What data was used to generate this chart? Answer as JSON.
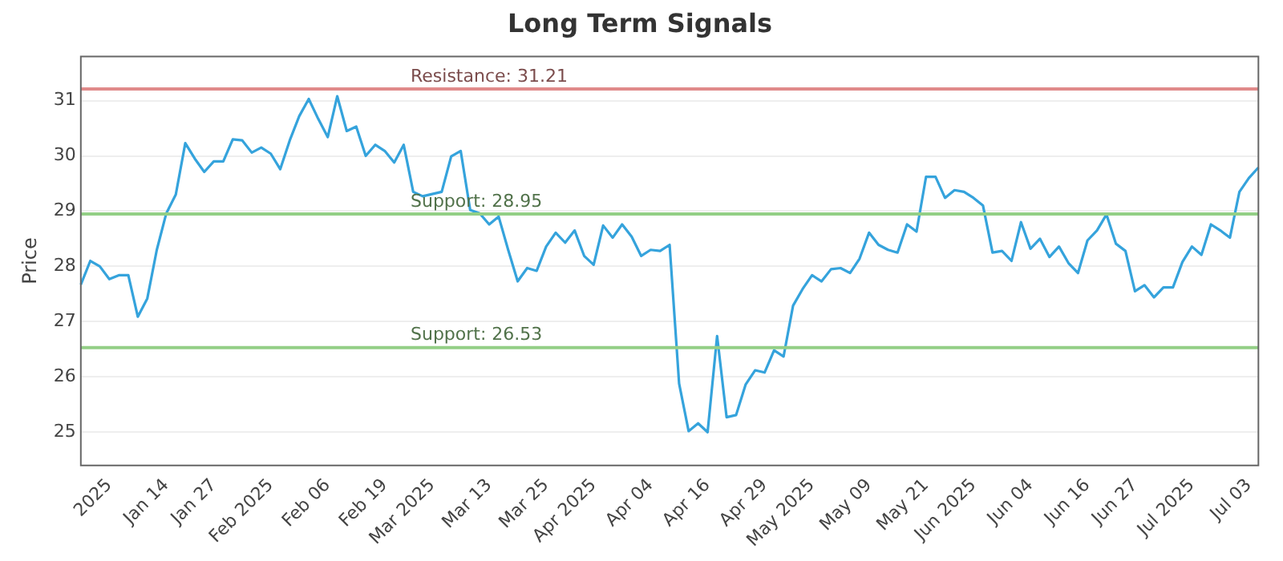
{
  "chart_data": {
    "type": "line",
    "title": "Long Term Signals",
    "ylabel": "Price",
    "categories": [
      null,
      null,
      null,
      "2025",
      null,
      null,
      null,
      null,
      null,
      "Jan 14",
      null,
      null,
      null,
      null,
      "Jan 27",
      null,
      null,
      null,
      null,
      null,
      "Feb 2025",
      null,
      null,
      null,
      null,
      null,
      "Feb 06",
      null,
      null,
      null,
      null,
      null,
      "Feb 19",
      null,
      null,
      null,
      null,
      "Mar 2025",
      null,
      null,
      null,
      null,
      null,
      "Mar 13",
      null,
      null,
      null,
      null,
      null,
      "Mar 25",
      null,
      null,
      null,
      null,
      "Apr 2025",
      null,
      null,
      null,
      null,
      null,
      "Apr 04",
      null,
      null,
      null,
      null,
      null,
      "Apr 16",
      null,
      null,
      null,
      null,
      null,
      "Apr 29",
      null,
      null,
      null,
      null,
      "May 2025",
      null,
      null,
      null,
      null,
      null,
      "May 09",
      null,
      null,
      null,
      null,
      null,
      "May 21",
      null,
      null,
      null,
      null,
      "Jun 2025",
      null,
      null,
      null,
      null,
      null,
      "Jun 04",
      null,
      null,
      null,
      null,
      null,
      "Jun 16",
      null,
      null,
      null,
      null,
      "Jun 27",
      null,
      null,
      null,
      null,
      null,
      "Jul 2025",
      null,
      null,
      null,
      null,
      null,
      "Jul 03",
      null
    ],
    "series": [
      {
        "color": "#35a3dc",
        "values": [
          27.67,
          28.1,
          28.0,
          27.77,
          27.84,
          27.84,
          27.09,
          27.42,
          28.3,
          28.96,
          29.3,
          30.23,
          29.95,
          29.71,
          29.9,
          29.9,
          30.3,
          30.28,
          30.06,
          30.15,
          30.04,
          29.76,
          30.28,
          30.72,
          31.03,
          30.67,
          30.34,
          31.08,
          30.45,
          30.53,
          30.0,
          30.2,
          30.09,
          29.88,
          30.2,
          29.35,
          29.27,
          29.31,
          29.35,
          29.99,
          30.09,
          29.02,
          28.96,
          28.76,
          28.9,
          28.3,
          27.73,
          27.97,
          27.92,
          28.36,
          28.61,
          28.43,
          28.65,
          28.19,
          28.03,
          28.74,
          28.52,
          28.76,
          28.54,
          28.19,
          28.3,
          28.28,
          28.39,
          25.88,
          25.02,
          25.16,
          25.0,
          26.74,
          25.27,
          25.31,
          25.86,
          26.12,
          26.08,
          26.48,
          26.37,
          27.29,
          27.59,
          27.84,
          27.73,
          27.95,
          27.97,
          27.88,
          28.14,
          28.61,
          28.39,
          28.3,
          28.25,
          28.76,
          28.63,
          29.62,
          29.62,
          29.24,
          29.38,
          29.35,
          29.24,
          29.1,
          28.25,
          28.28,
          28.1,
          28.8,
          28.32,
          28.5,
          28.17,
          28.36,
          28.06,
          27.88,
          28.47,
          28.65,
          28.94,
          28.41,
          28.28,
          27.55,
          27.66,
          27.44,
          27.62,
          27.62,
          28.08,
          28.36,
          28.21,
          28.76,
          28.65,
          28.52,
          29.35,
          29.6,
          29.79
        ]
      }
    ],
    "ylim": [
      24.4,
      31.8
    ],
    "yticks": [
      25,
      26,
      27,
      28,
      29,
      30,
      31
    ],
    "ref_lines": [
      {
        "axis": "y",
        "value": 31.21,
        "label": "Resistance: 31.21",
        "color": "#e08a8a"
      },
      {
        "axis": "y",
        "value": 28.95,
        "label": "Support: 28.95",
        "color": "#93cf86"
      },
      {
        "axis": "y",
        "value": 26.53,
        "label": "Support: 26.53",
        "color": "#93cf86"
      }
    ],
    "grid": "y",
    "legend": false,
    "marker": "none",
    "line_style": "solid"
  }
}
